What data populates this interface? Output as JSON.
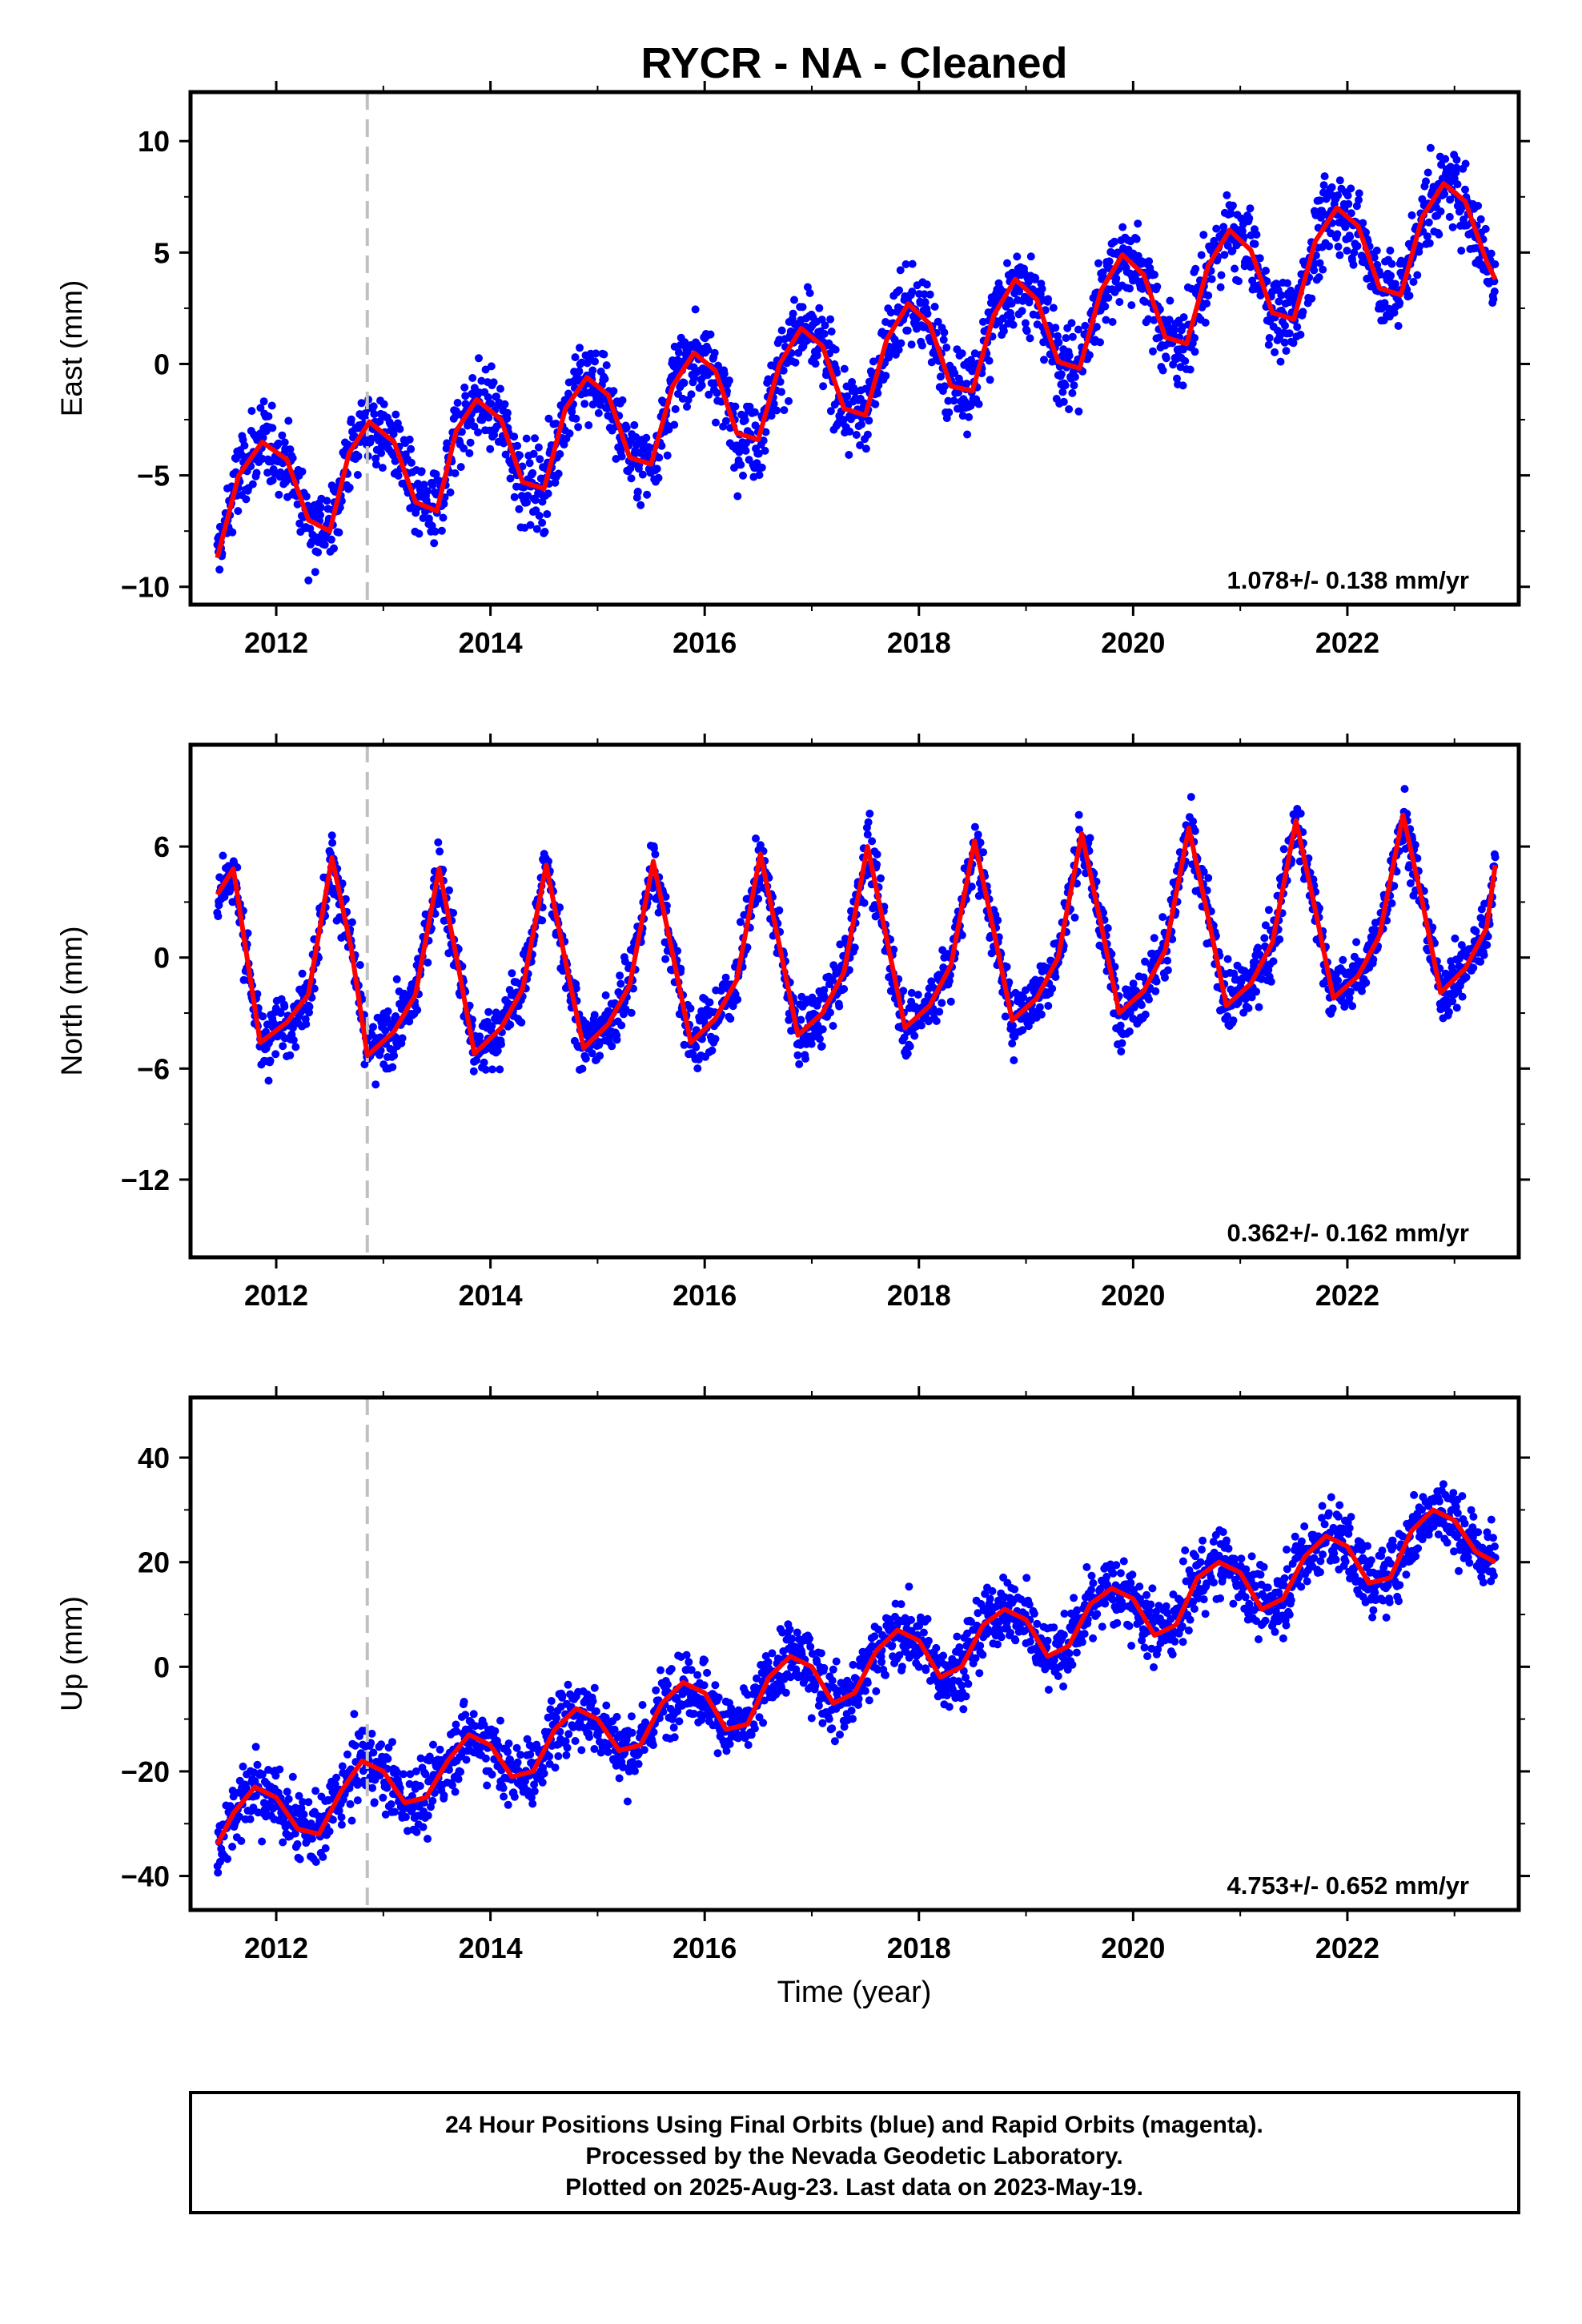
{
  "title": "RYCR  - NA - Cleaned",
  "xlabel": "Time (year)",
  "footer": {
    "line1": "24 Hour Positions Using Final Orbits (blue) and Rapid Orbits (magenta).",
    "line2": "Processed by the Nevada Geodetic Laboratory.",
    "line3": "Plotted on 2025-Aug-23. Last data on 2023-May-19."
  },
  "colors": {
    "data": "#0000ff",
    "model": "#ff0000",
    "event_line": "#c0c0c0",
    "frame": "#000000"
  },
  "chart_data": [
    {
      "type": "scatter",
      "ylabel": "East (mm)",
      "rate_text": "1.078+/- 0.138 mm/yr",
      "xlim": [
        2011.2,
        2023.6
      ],
      "ylim": [
        -10.8,
        12.2
      ],
      "yticks": [
        10,
        5,
        0,
        -5,
        -10
      ],
      "ytick_labels": [
        "10",
        "5",
        "0",
        "−5",
        "−10"
      ],
      "xticks": [
        2012,
        2014,
        2016,
        2018,
        2020,
        2022
      ],
      "xtick_labels": [
        "2012",
        "2014",
        "2016",
        "2018",
        "2020",
        "2022"
      ],
      "grid": false,
      "event_line_x": 2012.85,
      "series": [
        {
          "role": "model",
          "x": [
            2011.45,
            2011.65,
            2011.87,
            2012.1,
            2012.3,
            2012.5,
            2012.68,
            2012.87,
            2013.1,
            2013.3,
            2013.5,
            2013.68,
            2013.87,
            2014.1,
            2014.3,
            2014.5,
            2014.7,
            2014.9,
            2015.1,
            2015.3,
            2015.5,
            2015.7,
            2015.9,
            2016.1,
            2016.3,
            2016.5,
            2016.7,
            2016.9,
            2017.1,
            2017.3,
            2017.5,
            2017.7,
            2017.9,
            2018.1,
            2018.3,
            2018.5,
            2018.7,
            2018.9,
            2019.1,
            2019.3,
            2019.5,
            2019.7,
            2019.9,
            2020.1,
            2020.3,
            2020.5,
            2020.7,
            2020.9,
            2021.1,
            2021.3,
            2021.5,
            2021.7,
            2021.9,
            2022.1,
            2022.3,
            2022.5,
            2022.7,
            2022.9,
            2023.1,
            2023.3,
            2023.38
          ],
          "y": [
            -8.7,
            -5.0,
            -3.5,
            -4.3,
            -7.0,
            -7.5,
            -4.0,
            -2.6,
            -3.5,
            -6.2,
            -6.6,
            -3.0,
            -1.6,
            -2.5,
            -5.3,
            -5.6,
            -2.0,
            -0.6,
            -1.4,
            -4.2,
            -4.5,
            -1.0,
            0.5,
            -0.3,
            -3.1,
            -3.4,
            0.0,
            1.6,
            0.8,
            -2.0,
            -2.3,
            1.1,
            2.7,
            1.8,
            -1.0,
            -1.2,
            2.2,
            3.8,
            2.9,
            0.1,
            -0.2,
            3.3,
            4.9,
            4.0,
            1.2,
            0.9,
            4.4,
            6.0,
            5.1,
            2.3,
            2.0,
            5.5,
            7.0,
            6.2,
            3.4,
            3.1,
            6.6,
            8.1,
            7.3,
            4.6,
            3.8
          ]
        }
      ]
    },
    {
      "type": "scatter",
      "ylabel": "North (mm)",
      "rate_text": "0.362+/- 0.162 mm/yr",
      "xlim": [
        2011.2,
        2023.6
      ],
      "ylim": [
        -16.2,
        11.5
      ],
      "yticks": [
        6,
        0,
        -6,
        -12
      ],
      "ytick_labels": [
        "6",
        "0",
        "−6",
        "−12"
      ],
      "xticks": [
        2012,
        2014,
        2016,
        2018,
        2020,
        2022
      ],
      "xtick_labels": [
        "2012",
        "2014",
        "2016",
        "2018",
        "2020",
        "2022"
      ],
      "grid": false,
      "event_line_x": 2012.85,
      "series": [
        {
          "role": "model",
          "x": [
            2011.45,
            2011.6,
            2011.85,
            2012.1,
            2012.3,
            2012.52,
            2012.7,
            2012.85,
            2013.1,
            2013.3,
            2013.52,
            2013.7,
            2013.85,
            2014.1,
            2014.3,
            2014.52,
            2014.7,
            2014.87,
            2015.1,
            2015.3,
            2015.52,
            2015.7,
            2015.87,
            2016.1,
            2016.3,
            2016.52,
            2016.7,
            2016.87,
            2017.1,
            2017.3,
            2017.52,
            2017.7,
            2017.87,
            2018.1,
            2018.3,
            2018.52,
            2018.7,
            2018.87,
            2019.1,
            2019.3,
            2019.52,
            2019.7,
            2019.87,
            2020.1,
            2020.3,
            2020.52,
            2020.7,
            2020.87,
            2021.1,
            2021.3,
            2021.52,
            2021.7,
            2021.87,
            2022.1,
            2022.3,
            2022.52,
            2022.7,
            2022.87,
            2023.1,
            2023.3,
            2023.38
          ],
          "y": [
            3.4,
            4.8,
            -4.6,
            -3.5,
            -2.0,
            5.4,
            0.5,
            -5.3,
            -4.0,
            -2.0,
            4.8,
            -0.5,
            -5.2,
            -3.8,
            -1.7,
            5.0,
            -0.2,
            -4.9,
            -3.6,
            -1.5,
            5.2,
            0.2,
            -4.6,
            -3.3,
            -1.2,
            5.6,
            0.6,
            -4.2,
            -3.0,
            -0.8,
            6.0,
            1.0,
            -3.8,
            -2.6,
            -0.4,
            6.3,
            1.4,
            -3.4,
            -2.2,
            0.0,
            6.7,
            1.8,
            -3.0,
            -1.8,
            0.4,
            7.0,
            2.2,
            -2.6,
            -1.4,
            0.8,
            7.4,
            2.6,
            -2.2,
            -1.0,
            1.2,
            7.7,
            3.0,
            -1.9,
            -0.6,
            1.6,
            5.0
          ]
        }
      ]
    },
    {
      "type": "scatter",
      "ylabel": "Up (mm)",
      "rate_text": "4.753+/- 0.652 mm/yr",
      "xlabel": "Time (year)",
      "xlim": [
        2011.2,
        2023.6
      ],
      "ylim": [
        -46.5,
        51.5
      ],
      "yticks": [
        40,
        20,
        0,
        -20,
        -40
      ],
      "ytick_labels": [
        "40",
        "20",
        "0",
        "−20",
        "−40"
      ],
      "xticks": [
        2012,
        2014,
        2016,
        2018,
        2020,
        2022
      ],
      "xtick_labels": [
        "2012",
        "2014",
        "2016",
        "2018",
        "2020",
        "2022"
      ],
      "grid": false,
      "event_line_x": 2012.85,
      "series": [
        {
          "role": "model",
          "x": [
            2011.45,
            2011.6,
            2011.8,
            2012.0,
            2012.2,
            2012.4,
            2012.6,
            2012.8,
            2013.0,
            2013.2,
            2013.4,
            2013.6,
            2013.8,
            2014.0,
            2014.2,
            2014.4,
            2014.6,
            2014.8,
            2015.0,
            2015.2,
            2015.4,
            2015.6,
            2015.8,
            2016.0,
            2016.2,
            2016.4,
            2016.6,
            2016.8,
            2017.0,
            2017.2,
            2017.4,
            2017.6,
            2017.8,
            2018.0,
            2018.2,
            2018.4,
            2018.6,
            2018.8,
            2019.0,
            2019.2,
            2019.4,
            2019.6,
            2019.8,
            2020.0,
            2020.2,
            2020.4,
            2020.6,
            2020.8,
            2021.0,
            2021.2,
            2021.4,
            2021.6,
            2021.8,
            2022.0,
            2022.2,
            2022.4,
            2022.6,
            2022.8,
            2023.0,
            2023.2,
            2023.38
          ],
          "y": [
            -34,
            -28,
            -23,
            -25,
            -31,
            -32,
            -24,
            -18,
            -20,
            -26,
            -25,
            -18,
            -13,
            -15,
            -21,
            -20,
            -12,
            -8,
            -10,
            -16,
            -15,
            -7,
            -3,
            -5,
            -12,
            -11,
            -2,
            2,
            0,
            -7,
            -5,
            3,
            7,
            5,
            -2,
            0,
            8,
            11,
            9,
            2,
            4,
            12,
            15,
            13,
            6,
            8,
            17,
            20,
            18,
            11,
            13,
            21,
            25,
            23,
            16,
            17,
            26,
            30,
            28,
            22,
            20
          ]
        }
      ]
    }
  ]
}
